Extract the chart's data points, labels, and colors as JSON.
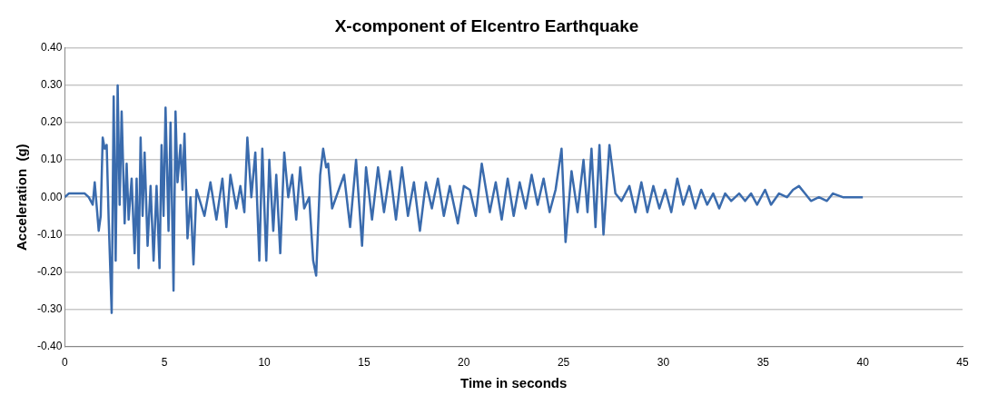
{
  "chart_data": {
    "type": "line",
    "title": "X-component of Elcentro Earthquake",
    "xlabel": "Time in seconds",
    "ylabel": "Acceleration  (g)",
    "color": "#3a6bad",
    "grid": "y",
    "legend": false,
    "marker": "none",
    "line_style": "solid",
    "x": [
      0,
      0.2,
      1.0,
      1.2,
      1.4,
      1.5,
      1.7,
      1.8,
      1.9,
      2.0,
      2.1,
      2.2,
      2.35,
      2.45,
      2.55,
      2.65,
      2.75,
      2.85,
      3.0,
      3.1,
      3.2,
      3.35,
      3.5,
      3.6,
      3.7,
      3.8,
      3.9,
      4.0,
      4.15,
      4.3,
      4.45,
      4.6,
      4.75,
      4.85,
      4.95,
      5.05,
      5.2,
      5.3,
      5.45,
      5.55,
      5.65,
      5.8,
      5.9,
      6.0,
      6.15,
      6.3,
      6.45,
      6.6,
      7.0,
      7.3,
      7.6,
      7.9,
      8.1,
      8.3,
      8.6,
      8.8,
      9.0,
      9.15,
      9.35,
      9.55,
      9.75,
      9.9,
      10.1,
      10.25,
      10.45,
      10.6,
      10.8,
      11.0,
      11.2,
      11.4,
      11.6,
      11.8,
      12.0,
      12.25,
      12.45,
      12.6,
      12.8,
      12.95,
      13.1,
      13.2,
      13.4,
      14.0,
      14.3,
      14.6,
      14.9,
      15.1,
      15.4,
      15.7,
      16.0,
      16.3,
      16.6,
      16.9,
      17.2,
      17.5,
      17.8,
      18.1,
      18.4,
      18.7,
      19.0,
      19.3,
      19.7,
      20.0,
      20.3,
      20.6,
      20.9,
      21.3,
      21.6,
      21.9,
      22.2,
      22.5,
      22.8,
      23.1,
      23.4,
      23.7,
      24.0,
      24.3,
      24.6,
      24.9,
      25.1,
      25.4,
      25.7,
      26.0,
      26.2,
      26.4,
      26.6,
      26.8,
      27.0,
      27.3,
      27.6,
      27.9,
      28.3,
      28.6,
      28.9,
      29.2,
      29.5,
      29.8,
      30.1,
      30.4,
      30.7,
      31.0,
      31.3,
      31.6,
      31.9,
      32.2,
      32.5,
      32.8,
      33.1,
      33.4,
      33.8,
      34.1,
      34.4,
      34.7,
      35.1,
      35.4,
      35.8,
      36.2,
      36.5,
      36.8,
      37.1,
      37.4,
      37.8,
      38.2,
      38.5,
      39.0,
      40.0
    ],
    "values": [
      0,
      0.01,
      0.01,
      0,
      -0.02,
      0.04,
      -0.09,
      -0.05,
      0.16,
      0.13,
      0.14,
      -0.06,
      -0.31,
      0.27,
      -0.17,
      0.3,
      -0.02,
      0.23,
      -0.07,
      0.09,
      -0.06,
      0.05,
      -0.15,
      0.05,
      -0.19,
      0.16,
      -0.05,
      0.12,
      -0.13,
      0.03,
      -0.17,
      0.03,
      -0.19,
      0.14,
      -0.05,
      0.24,
      -0.09,
      0.2,
      -0.25,
      0.23,
      0.04,
      0.14,
      0.02,
      0.17,
      -0.11,
      0,
      -0.18,
      0.02,
      -0.05,
      0.04,
      -0.06,
      0.05,
      -0.08,
      0.06,
      -0.03,
      0.03,
      -0.04,
      0.16,
      0,
      0.12,
      -0.17,
      0.13,
      -0.17,
      0.1,
      -0.09,
      0.06,
      -0.15,
      0.12,
      0,
      0.06,
      -0.06,
      0.08,
      -0.03,
      0,
      -0.17,
      -0.21,
      0.06,
      0.13,
      0.08,
      0.09,
      -0.03,
      0.06,
      -0.08,
      0.1,
      -0.13,
      0.08,
      -0.06,
      0.08,
      -0.04,
      0.07,
      -0.06,
      0.08,
      -0.05,
      0.04,
      -0.09,
      0.04,
      -0.03,
      0.05,
      -0.05,
      0.03,
      -0.07,
      0.03,
      0.02,
      -0.05,
      0.09,
      -0.04,
      0.04,
      -0.06,
      0.05,
      -0.05,
      0.04,
      -0.03,
      0.06,
      -0.02,
      0.05,
      -0.04,
      0.02,
      0.13,
      -0.12,
      0.07,
      -0.04,
      0.1,
      -0.04,
      0.13,
      -0.08,
      0.14,
      -0.1,
      0.14,
      0.01,
      -0.01,
      0.03,
      -0.04,
      0.04,
      -0.04,
      0.03,
      -0.03,
      0.02,
      -0.04,
      0.05,
      -0.02,
      0.03,
      -0.03,
      0.02,
      -0.02,
      0.01,
      -0.03,
      0.01,
      -0.01,
      0.01,
      -0.01,
      0.01,
      -0.02,
      0.02,
      -0.02,
      0.01,
      0,
      0.02,
      0.03,
      0.01,
      -0.01,
      0,
      -0.01,
      0.01,
      0,
      0
    ],
    "xlim": [
      0,
      45
    ],
    "xticks": [
      0,
      5,
      10,
      15,
      20,
      25,
      30,
      35,
      40,
      45
    ],
    "ylim": [
      -0.4,
      0.4
    ],
    "yticks": [
      {
        "value": -0.4,
        "label": "-0.40"
      },
      {
        "value": -0.3,
        "label": "-0.30"
      },
      {
        "value": -0.2,
        "label": "-0.20"
      },
      {
        "value": -0.1,
        "label": "-0.10"
      },
      {
        "value": 0,
        "label": "0.00"
      },
      {
        "value": 0.1,
        "label": "0.10"
      },
      {
        "value": 0.2,
        "label": "0.20"
      },
      {
        "value": 0.3,
        "label": "0.30"
      },
      {
        "value": 0.4,
        "label": "0.40"
      }
    ]
  }
}
